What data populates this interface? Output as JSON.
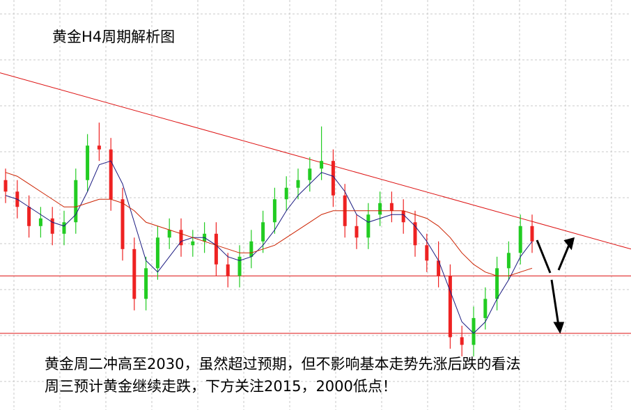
{
  "chart_data": {
    "type": "candlestick",
    "title": "黄金H4周期解析图",
    "annotations": [
      "黄金周二冲高至2030，虽然超过预期，但不影响基本走势先涨后跌的看法",
      "周三预计黄金继续走跌，下方关注2015，2000低点！"
    ],
    "ylim": [
      1980,
      2087
    ],
    "grid": true,
    "up_color": "#22cc22",
    "down_color": "#ee2222",
    "open": [
      2040,
      2037,
      2033,
      2028,
      2030,
      2026,
      2029,
      2040,
      2049,
      2048,
      2035,
      2022,
      2009,
      2017,
      2025,
      2027,
      2023,
      2024,
      2026,
      2018,
      2015,
      2020,
      2024,
      2029,
      2035,
      2038,
      2040,
      2043,
      2045,
      2036,
      2028,
      2025,
      2031,
      2034,
      2032,
      2029,
      2023,
      2019,
      2015,
      1999,
      1997,
      2004,
      2009,
      2017,
      2021,
      2028
    ],
    "high": [
      2043,
      2040,
      2036,
      2033,
      2033,
      2032,
      2043,
      2052,
      2055,
      2051,
      2038,
      2025,
      2020,
      2028,
      2030,
      2030,
      2027,
      2029,
      2029,
      2021,
      2023,
      2027,
      2032,
      2038,
      2041,
      2043,
      2046,
      2054,
      2048,
      2039,
      2031,
      2034,
      2037,
      2037,
      2035,
      2032,
      2026,
      2024,
      2018,
      2002,
      2007,
      2012,
      2020,
      2024,
      2031,
      2031
    ],
    "low": [
      2034,
      2030,
      2025,
      2025,
      2023,
      2023,
      2026,
      2037,
      2045,
      2032,
      2019,
      2006,
      2006,
      2014,
      2022,
      2020,
      2020,
      2021,
      2015,
      2012,
      2012,
      2017,
      2021,
      2026,
      2032,
      2035,
      2037,
      2040,
      2033,
      2025,
      2022,
      2022,
      2028,
      2029,
      2026,
      2020,
      2016,
      2012,
      1996,
      1994,
      1994,
      2001,
      2006,
      2014,
      2018,
      2021
    ],
    "close": [
      2037,
      2033,
      2028,
      2030,
      2026,
      2029,
      2040,
      2049,
      2048,
      2035,
      2022,
      2009,
      2017,
      2025,
      2027,
      2023,
      2024,
      2026,
      2018,
      2015,
      2020,
      2024,
      2029,
      2035,
      2038,
      2040,
      2043,
      2045,
      2036,
      2028,
      2025,
      2031,
      2034,
      2032,
      2029,
      2023,
      2019,
      2015,
      1999,
      1997,
      2004,
      2009,
      2017,
      2021,
      2028,
      2024
    ],
    "series": [
      {
        "color": "#1a1a80",
        "values": [
          2036,
          2035,
          2033,
          2031,
          2029,
          2028,
          2031,
          2037,
          2044,
          2045,
          2039,
          2029,
          2019,
          2016,
          2020,
          2024,
          2025,
          2025,
          2023,
          2020,
          2019,
          2020,
          2023,
          2027,
          2032,
          2036,
          2039,
          2042,
          2041,
          2037,
          2031,
          2029,
          2030,
          2031,
          2031,
          2028,
          2024,
          2019,
          2011,
          2003,
          2000,
          2003,
          2009,
          2014,
          2020,
          2024
        ]
      },
      {
        "color": "#cc2200",
        "values": [
          2042,
          2041,
          2039,
          2037,
          2035,
          2033,
          2033,
          2034,
          2035,
          2035,
          2034,
          2032,
          2029,
          2028,
          2027,
          2026,
          2025,
          2024,
          2023,
          2022,
          2021,
          2021,
          2022,
          2023,
          2025,
          2027,
          2029,
          2031,
          2032,
          2032,
          2032,
          2032,
          2032,
          2032,
          2032,
          2031,
          2030,
          2028,
          2025,
          2021,
          2018,
          2016,
          2015,
          2015,
          2016,
          2017
        ]
      }
    ],
    "trendline": [
      2068,
      2022
    ],
    "levels": [
      2015,
      2000
    ],
    "line_color": "#dd1111"
  }
}
